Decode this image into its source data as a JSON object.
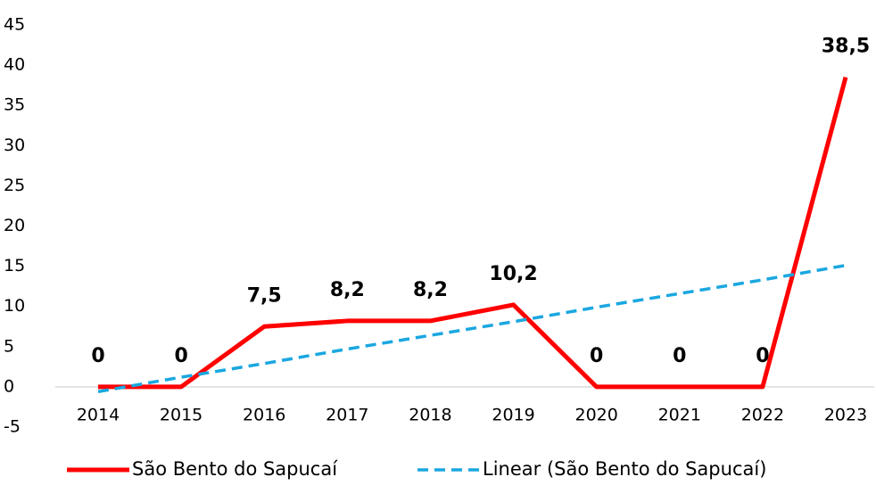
{
  "chart_data": {
    "type": "line",
    "categories": [
      "2014",
      "2015",
      "2016",
      "2017",
      "2018",
      "2019",
      "2020",
      "2021",
      "2022",
      "2023"
    ],
    "series": [
      {
        "name": "São Bento do Sapucaí",
        "color": "#ff0000",
        "values": [
          0,
          0,
          7.5,
          8.2,
          8.2,
          10.2,
          0,
          0,
          0,
          38.5
        ],
        "value_labels": [
          "0",
          "0",
          "7,5",
          "8,2",
          "8,2",
          "10,2",
          "0",
          "0",
          "0",
          "38,5"
        ]
      },
      {
        "name": "Linear (São Bento do Sapucaí)",
        "color": "#1aa7e0",
        "dashed": true,
        "values": [
          -0.6,
          1.2,
          2.9,
          4.7,
          6.4,
          8.1,
          9.9,
          11.6,
          13.3,
          15.1
        ]
      }
    ],
    "ylim": [
      -5,
      45
    ],
    "yticks": [
      -5,
      0,
      5,
      10,
      15,
      20,
      25,
      30,
      35,
      40,
      45
    ],
    "legend": "bottom"
  }
}
